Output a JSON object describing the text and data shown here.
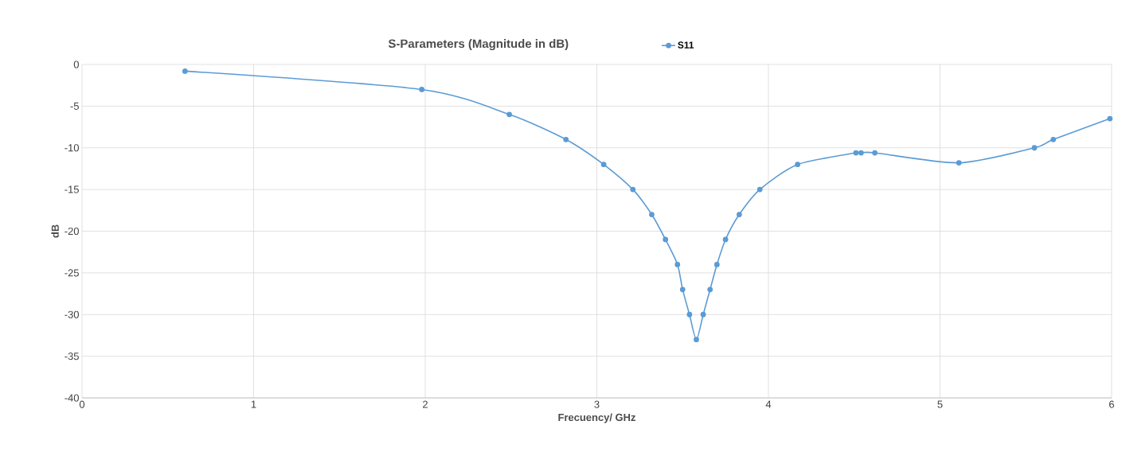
{
  "chart_data": {
    "type": "line",
    "title": "S-Parameters (Magnitude in dB)",
    "xlabel": "Frecuency/ GHz",
    "ylabel": "dB",
    "xlim": [
      0,
      6
    ],
    "xticks": [
      0,
      1,
      2,
      3,
      4,
      5,
      6
    ],
    "ylim": [
      -40,
      0
    ],
    "yticks": [
      -40,
      -35,
      -30,
      -25,
      -20,
      -15,
      -10,
      -5,
      0
    ],
    "grid": true,
    "legend": "top",
    "marker": "circle",
    "line_style": "solid",
    "series": [
      {
        "name": "S11",
        "color": "#5b9bd5",
        "x": [
          0.6,
          1.98,
          2.49,
          2.82,
          3.04,
          3.21,
          3.32,
          3.4,
          3.47,
          3.5,
          3.54,
          3.58,
          3.62,
          3.66,
          3.7,
          3.75,
          3.83,
          3.95,
          4.17,
          4.51,
          4.54,
          4.62,
          5.11,
          5.55,
          5.66,
          5.99
        ],
        "values": [
          -0.8,
          -3,
          -6,
          -9,
          -12,
          -15,
          -18,
          -21,
          -24,
          -27,
          -30,
          -33,
          -30,
          -27,
          -24,
          -21,
          -18,
          -15,
          -12,
          -10.6,
          -10.6,
          -10.6,
          -11.8,
          -10,
          -9,
          -6.5
        ]
      }
    ]
  }
}
